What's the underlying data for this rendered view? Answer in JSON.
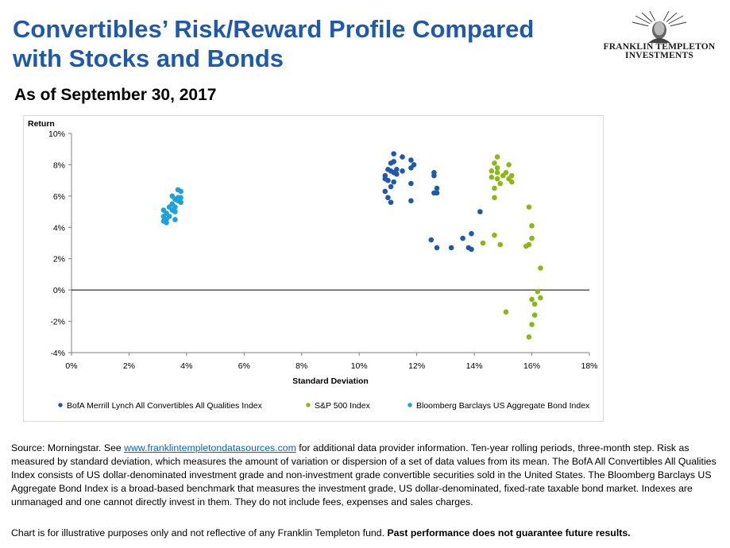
{
  "header": {
    "title": "Convertibles’ Risk/Reward Profile Compared with Stocks and Bonds",
    "subtitle": "As of September 30, 2017"
  },
  "logo": {
    "line1": "FRANKLIN TEMPLETON",
    "line2": "INVESTMENTS"
  },
  "colors": {
    "title": "#1f5aa8",
    "convertibles": "#1f5aa8",
    "sp500": "#8ab915",
    "bonds": "#1da1dc"
  },
  "chart_data": {
    "type": "scatter",
    "title": "",
    "xlabel": "Standard Deviation",
    "ylabel": "Return",
    "xlim": [
      0,
      18
    ],
    "ylim": [
      -4,
      10
    ],
    "x_ticks": [
      "0%",
      "2%",
      "4%",
      "6%",
      "8%",
      "10%",
      "12%",
      "14%",
      "16%",
      "18%"
    ],
    "y_ticks": [
      "-4%",
      "-2%",
      "0%",
      "2%",
      "4%",
      "6%",
      "8%",
      "10%"
    ],
    "grid": false,
    "legend_position": "bottom",
    "series": [
      {
        "name": "BofA Merrill Lynch All Convertibles All Qualities Index",
        "color": "#1f5aa8",
        "points": [
          [
            11.2,
            8.7
          ],
          [
            11.5,
            8.5
          ],
          [
            11.8,
            8.3
          ],
          [
            11.2,
            8.2
          ],
          [
            11.1,
            8.1
          ],
          [
            11.9,
            8.0
          ],
          [
            11.8,
            7.8
          ],
          [
            11.0,
            7.7
          ],
          [
            11.3,
            7.7
          ],
          [
            11.1,
            7.6
          ],
          [
            11.2,
            7.5
          ],
          [
            11.5,
            7.6
          ],
          [
            12.6,
            7.5
          ],
          [
            12.6,
            7.3
          ],
          [
            10.9,
            7.3
          ],
          [
            11.3,
            7.4
          ],
          [
            10.9,
            7.1
          ],
          [
            11.0,
            7.0
          ],
          [
            11.2,
            6.9
          ],
          [
            11.8,
            6.8
          ],
          [
            11.1,
            6.6
          ],
          [
            12.7,
            6.5
          ],
          [
            12.7,
            6.2
          ],
          [
            12.6,
            6.2
          ],
          [
            10.9,
            6.3
          ],
          [
            11.0,
            5.9
          ],
          [
            11.1,
            5.6
          ],
          [
            11.8,
            5.7
          ],
          [
            14.2,
            5.0
          ],
          [
            13.9,
            3.6
          ],
          [
            13.6,
            3.3
          ],
          [
            12.5,
            3.2
          ],
          [
            12.7,
            2.7
          ],
          [
            13.2,
            2.7
          ],
          [
            13.8,
            2.7
          ],
          [
            13.9,
            2.6
          ]
        ]
      },
      {
        "name": "S&P 500 Index",
        "color": "#8ab915",
        "points": [
          [
            14.8,
            8.5
          ],
          [
            14.7,
            8.1
          ],
          [
            15.2,
            8.0
          ],
          [
            14.8,
            7.8
          ],
          [
            14.6,
            7.6
          ],
          [
            15.1,
            7.5
          ],
          [
            14.8,
            7.5
          ],
          [
            15.0,
            7.3
          ],
          [
            15.3,
            7.3
          ],
          [
            14.6,
            7.2
          ],
          [
            14.8,
            7.1
          ],
          [
            15.2,
            7.1
          ],
          [
            15.3,
            6.9
          ],
          [
            14.9,
            6.8
          ],
          [
            14.7,
            6.5
          ],
          [
            14.7,
            5.9
          ],
          [
            15.9,
            5.3
          ],
          [
            16.0,
            4.1
          ],
          [
            14.7,
            3.5
          ],
          [
            16.0,
            3.3
          ],
          [
            14.3,
            3.0
          ],
          [
            14.9,
            2.9
          ],
          [
            15.9,
            2.9
          ],
          [
            15.8,
            2.8
          ],
          [
            16.3,
            1.4
          ],
          [
            16.2,
            -0.1
          ],
          [
            16.3,
            -0.5
          ],
          [
            16.0,
            -0.6
          ],
          [
            16.1,
            -0.9
          ],
          [
            15.1,
            -1.4
          ],
          [
            16.1,
            -1.6
          ],
          [
            16.0,
            -2.2
          ],
          [
            15.9,
            -3.0
          ]
        ]
      },
      {
        "name": "Bloomberg Barclays US Aggregate Bond Index",
        "color": "#1da1dc",
        "points": [
          [
            3.7,
            6.4
          ],
          [
            3.8,
            6.3
          ],
          [
            3.5,
            6.0
          ],
          [
            3.7,
            5.9
          ],
          [
            3.8,
            5.9
          ],
          [
            3.6,
            5.8
          ],
          [
            3.7,
            5.7
          ],
          [
            3.8,
            5.6
          ],
          [
            3.5,
            5.5
          ],
          [
            3.6,
            5.3
          ],
          [
            3.4,
            5.3
          ],
          [
            3.5,
            5.1
          ],
          [
            3.2,
            5.1
          ],
          [
            3.6,
            5.0
          ],
          [
            3.3,
            4.9
          ],
          [
            3.2,
            4.7
          ],
          [
            3.4,
            4.7
          ],
          [
            3.3,
            4.5
          ],
          [
            3.6,
            4.5
          ],
          [
            3.2,
            4.4
          ],
          [
            3.3,
            4.3
          ]
        ]
      }
    ]
  },
  "footer": {
    "source_prefix": "Source: Morningstar. See ",
    "source_link": "www.franklintempletondatasources.com",
    "source_rest": " for additional data provider information. Ten-year rolling periods, three-month step. Risk as measured by standard deviation, which measures the amount of variation or dispersion of a set of data values from its mean. The BofA All Convertibles All Qualities Index consists of US dollar-denominated investment grade and non-investment grade convertible securities sold in the United States. The Bloomberg Barclays US Aggregate Bond Index is a broad-based benchmark that measures the investment grade, US dollar-denominated, fixed-rate taxable bond market. Indexes are unmanaged and one cannot directly invest in them. They do not include fees, expenses and sales charges.",
    "disclaimer": "Chart is for illustrative purposes only and not reflective of any Franklin Templeton fund. ",
    "disclaimer_bold": "Past performance does not guarantee future results."
  }
}
